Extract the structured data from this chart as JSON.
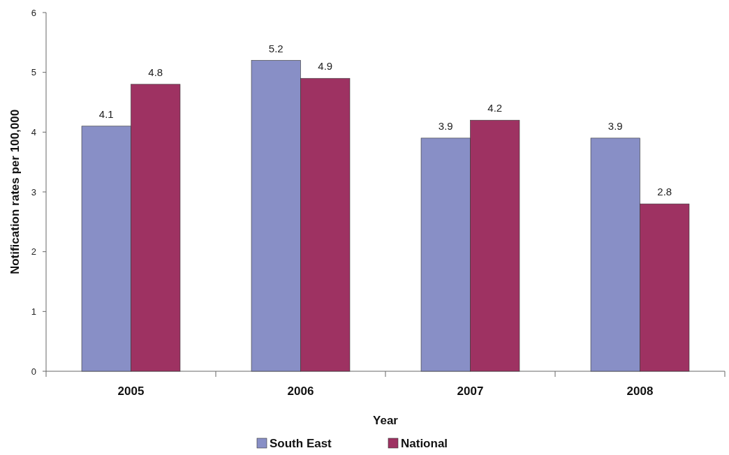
{
  "chart_data": {
    "type": "bar",
    "xlabel": "Year",
    "ylabel": "Notification rates per 100,000",
    "categories": [
      "2005",
      "2006",
      "2007",
      "2008"
    ],
    "series": [
      {
        "name": "South East",
        "color": "#888fc6",
        "values": [
          4.1,
          5.2,
          3.9,
          3.9
        ]
      },
      {
        "name": "National",
        "color": "#9e3262",
        "values": [
          4.8,
          4.9,
          4.2,
          2.8
        ]
      }
    ],
    "ylim": [
      0,
      6
    ],
    "yticks": [
      0,
      1,
      2,
      3,
      4,
      5,
      6
    ],
    "data_labels": true,
    "legend": "bottom",
    "grid": false
  }
}
